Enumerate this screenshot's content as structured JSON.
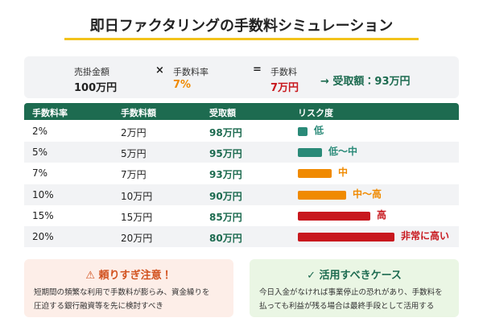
{
  "header": {
    "title": "即日ファクタリングの手数料シミュレーション"
  },
  "summary": {
    "receivable": {
      "label": "売掛金額",
      "value": "100万円"
    },
    "times": "×",
    "rate": {
      "label": "手数料率",
      "value": "7%"
    },
    "equals": "=",
    "fee": {
      "label": "手数料",
      "value": "7万円"
    },
    "result": "→ 受取額：93万円"
  },
  "table": {
    "columns": [
      "手数料率",
      "手数料額",
      "受取額",
      "リスク度"
    ],
    "rows": [
      [
        "2%",
        "2万円",
        "98万円",
        "低"
      ],
      [
        "5%",
        "5万円",
        "95万円",
        "低〜中"
      ],
      [
        "7%",
        "7万円",
        "93万円",
        "中"
      ],
      [
        "10%",
        "10万円",
        "90万円",
        "中〜高"
      ],
      [
        "15%",
        "15万円",
        "85万円",
        "高"
      ],
      [
        "20%",
        "20万円",
        "80万円",
        "非常に高い"
      ]
    ]
  },
  "notes": [
    {
      "title": "⚠ 頼りすぎ注意！",
      "lines": [
        "短期間の頻繁な利用で手数料が膨らみ、資金繰りを",
        "圧迫する銀行融資等を先に検討すべき"
      ]
    },
    {
      "title": "✓ 活用すべきケース",
      "lines": [
        "今日入金がなければ事業停止の恐れがあり、手数料を",
        "払っても利益が残る場合は最終手段として活用する"
      ]
    }
  ]
}
